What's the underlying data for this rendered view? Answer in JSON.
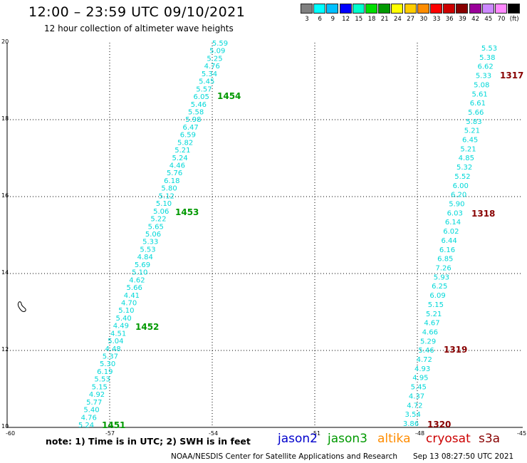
{
  "header": {
    "title": "12:00 – 23:59 UTC 09/10/2021",
    "subtitle": "12 hour collection of altimeter wave heights"
  },
  "color_legend": {
    "colors": [
      "#808080",
      "#00ffff",
      "#00bfff",
      "#0000ff",
      "#00ffcc",
      "#00dd00",
      "#009900",
      "#ffff00",
      "#ffcc00",
      "#ff8c00",
      "#ff0000",
      "#cc0000",
      "#880000",
      "#990099",
      "#cc88ff",
      "#ff88ff",
      "#000000"
    ],
    "labels": [
      "3",
      "6",
      "9",
      "12",
      "15",
      "18",
      "21",
      "24",
      "27",
      "30",
      "33",
      "36",
      "39",
      "42",
      "45",
      "70",
      "(ft)"
    ]
  },
  "map": {
    "lon_ticks": [
      "-60",
      "-57",
      "-54",
      "-51",
      "-48",
      "-45"
    ],
    "lat_ticks": [
      "20",
      "18",
      "16",
      "14",
      "12",
      "10"
    ],
    "track1": {
      "values": [
        "5.59",
        "5.09",
        "5.25",
        "4.76",
        "5.34",
        "5.45",
        "5.57",
        "6.05",
        "5.46",
        "5.58",
        "5.98",
        "6.47",
        "6.59",
        "5.82",
        "5.21",
        "5.24",
        "4.46",
        "5.76",
        "6.18",
        "5.80",
        "5.12",
        "5.10",
        "5.06",
        "5.22",
        "5.65",
        "5.06",
        "5.33",
        "5.53",
        "4.84",
        "5.69",
        "5.10",
        "4.62",
        "5.66",
        "4.41",
        "4.70",
        "5.10",
        "5.40",
        "4.49",
        "4.51",
        "5.04",
        "4.48",
        "5.37",
        "5.30",
        "6.19",
        "5.53",
        "5.15",
        "4.92",
        "5.77",
        "5.40",
        "4.76",
        "5.24"
      ],
      "orbits": [
        "1454",
        "1453",
        "1452",
        "1451"
      ]
    },
    "track2": {
      "values": [
        "5.53",
        "5.38",
        "6.62",
        "5.33",
        "5.08",
        "5.61",
        "6.61",
        "5.66",
        "5.83",
        "5.21",
        "6.45",
        "5.21",
        "4.85",
        "5.32",
        "5.52",
        "6.00",
        "6.20",
        "5.90",
        "6.03",
        "6.14",
        "6.02",
        "6.44",
        "6.16",
        "6.85",
        "7.26",
        "5.93",
        "6.25",
        "6.09",
        "5.15",
        "5.21",
        "4.67",
        "4.66",
        "5.29",
        "5.46",
        "4.72",
        "4.93",
        "4.95",
        "5.45",
        "4.37",
        "4.72",
        "3.54",
        "3.86"
      ],
      "orbits": [
        "1317",
        "1318",
        "1319",
        "1320"
      ]
    }
  },
  "footer": {
    "note": "note:  1) Time is in UTC;  2) SWH is in feet",
    "satellites": [
      {
        "name": "jason2",
        "color": "#0000cc"
      },
      {
        "name": "jason3",
        "color": "#009900"
      },
      {
        "name": "altika",
        "color": "#ff8c00"
      },
      {
        "name": "cryosat",
        "color": "#cc0000"
      },
      {
        "name": "s3a",
        "color": "#880000"
      }
    ],
    "credit": "NOAA/NESDIS Center for Satellite Applications and Research",
    "timestamp": "Sep 13 08:27:50 UTC 2021"
  }
}
